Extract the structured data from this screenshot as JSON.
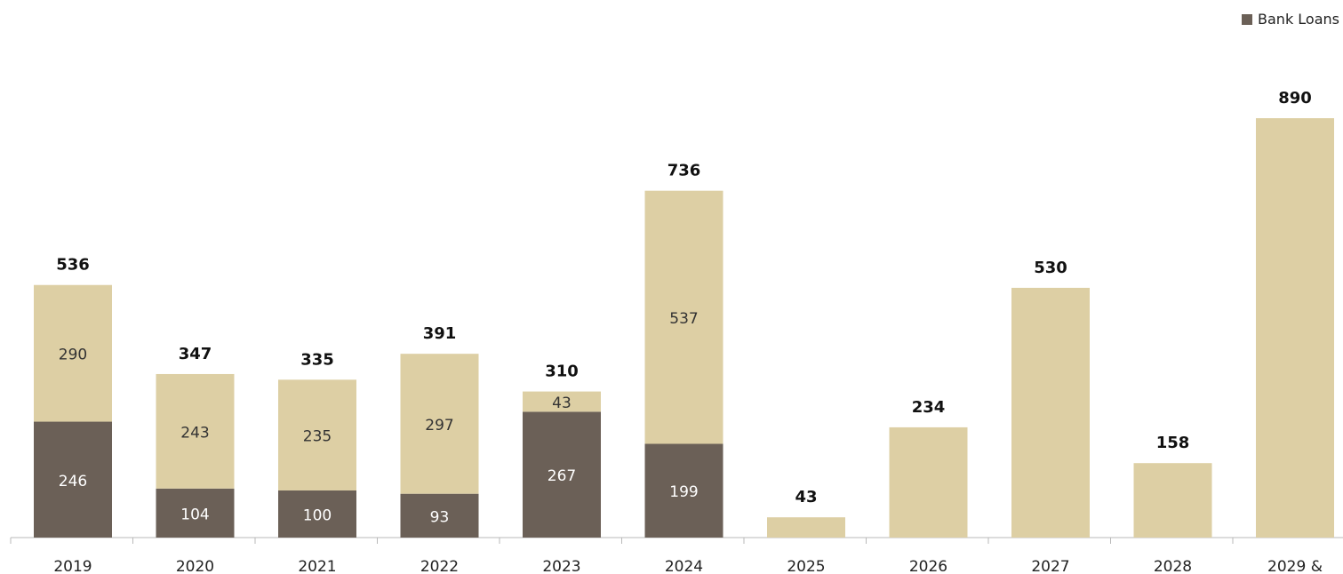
{
  "chart_data": {
    "type": "bar",
    "stacked": true,
    "categories": [
      "2019",
      "2020",
      "2021",
      "2022",
      "2023",
      "2024",
      "2025",
      "2026",
      "2027",
      "2028",
      "2029 &"
    ],
    "series": [
      {
        "name": "Bank Loans",
        "color": "#6b6057",
        "values": [
          246,
          104,
          100,
          93,
          267,
          199,
          0,
          0,
          0,
          0,
          0
        ]
      },
      {
        "color": "#ddcfa4",
        "values": [
          290,
          243,
          235,
          297,
          43,
          537,
          43,
          234,
          530,
          158,
          890
        ]
      }
    ],
    "segment_labels": [
      [
        "246",
        "104",
        "100",
        "93",
        "267",
        "199",
        "",
        "",
        "",
        "",
        ""
      ],
      [
        "290",
        "243",
        "235",
        "297",
        "43",
        "537",
        "",
        "",
        "",
        "",
        ""
      ]
    ],
    "totals": [
      "536",
      "347",
      "335",
      "391",
      "310",
      "736",
      "43",
      "234",
      "530",
      "158",
      "890"
    ],
    "ylim": [
      0,
      890
    ],
    "grid": false,
    "legend_position": "top-right",
    "axis_color": "#b9b9b9",
    "label_colors": {
      "inside": "#ffffff",
      "inside_light": "#333333",
      "totals": "#111111",
      "ticks": "#222222"
    }
  }
}
